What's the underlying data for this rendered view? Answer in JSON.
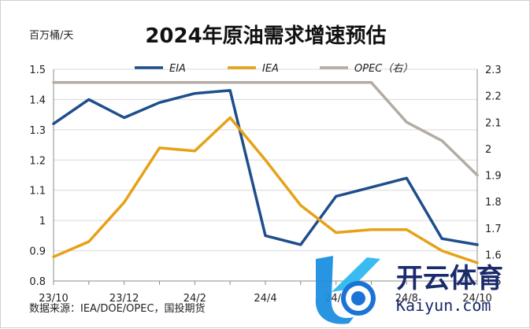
{
  "chart_data": {
    "type": "line",
    "title": "2024年原油需求增速预估",
    "y_unit_label": "百万桶/天",
    "source_note": "数据来源：IEA/DOE/OPEC，国投期货",
    "categories": [
      "23/10",
      "23/11",
      "23/12",
      "24/1",
      "24/2",
      "24/3",
      "24/4",
      "24/5",
      "24/6",
      "24/7",
      "24/8",
      "24/9",
      "24/10"
    ],
    "x_tick_labels": [
      "23/10",
      "23/12",
      "24/2",
      "24/4",
      "24/6",
      "24/8",
      "24/10"
    ],
    "x_tick_indices": [
      0,
      2,
      4,
      6,
      8,
      10,
      12
    ],
    "y_left": {
      "min": 0.8,
      "max": 1.5,
      "step": 0.1,
      "ticks": [
        "0.8",
        "0.9",
        "1",
        "1.1",
        "1.2",
        "1.3",
        "1.4",
        "1.5"
      ]
    },
    "y_right": {
      "min": 1.5,
      "max": 2.3,
      "step": 0.1,
      "ticks": [
        "1.5",
        "1.6",
        "1.7",
        "1.8",
        "1.9",
        "2",
        "2.1",
        "2.2",
        "2.3"
      ]
    },
    "grid": true,
    "legend_position": "top",
    "series": [
      {
        "name": "EIA",
        "axis": "left",
        "color": "#1f4e8c",
        "values": [
          1.32,
          1.4,
          1.34,
          1.39,
          1.42,
          1.43,
          0.95,
          0.92,
          1.08,
          1.11,
          1.14,
          0.94,
          0.92
        ]
      },
      {
        "name": "IEA",
        "axis": "left",
        "color": "#e6a117",
        "values": [
          0.88,
          0.93,
          1.06,
          1.24,
          1.23,
          1.34,
          1.2,
          1.05,
          0.96,
          0.97,
          0.97,
          0.9,
          0.86
        ]
      },
      {
        "name": "OPEC（右）",
        "axis": "right",
        "color": "#b3aca4",
        "values": [
          2.25,
          2.25,
          2.25,
          2.25,
          2.25,
          2.25,
          2.25,
          2.25,
          2.25,
          2.25,
          2.1,
          2.03,
          1.9
        ]
      }
    ]
  },
  "watermark": {
    "brand": "开云体育",
    "domain": "Kaiyun.com"
  }
}
